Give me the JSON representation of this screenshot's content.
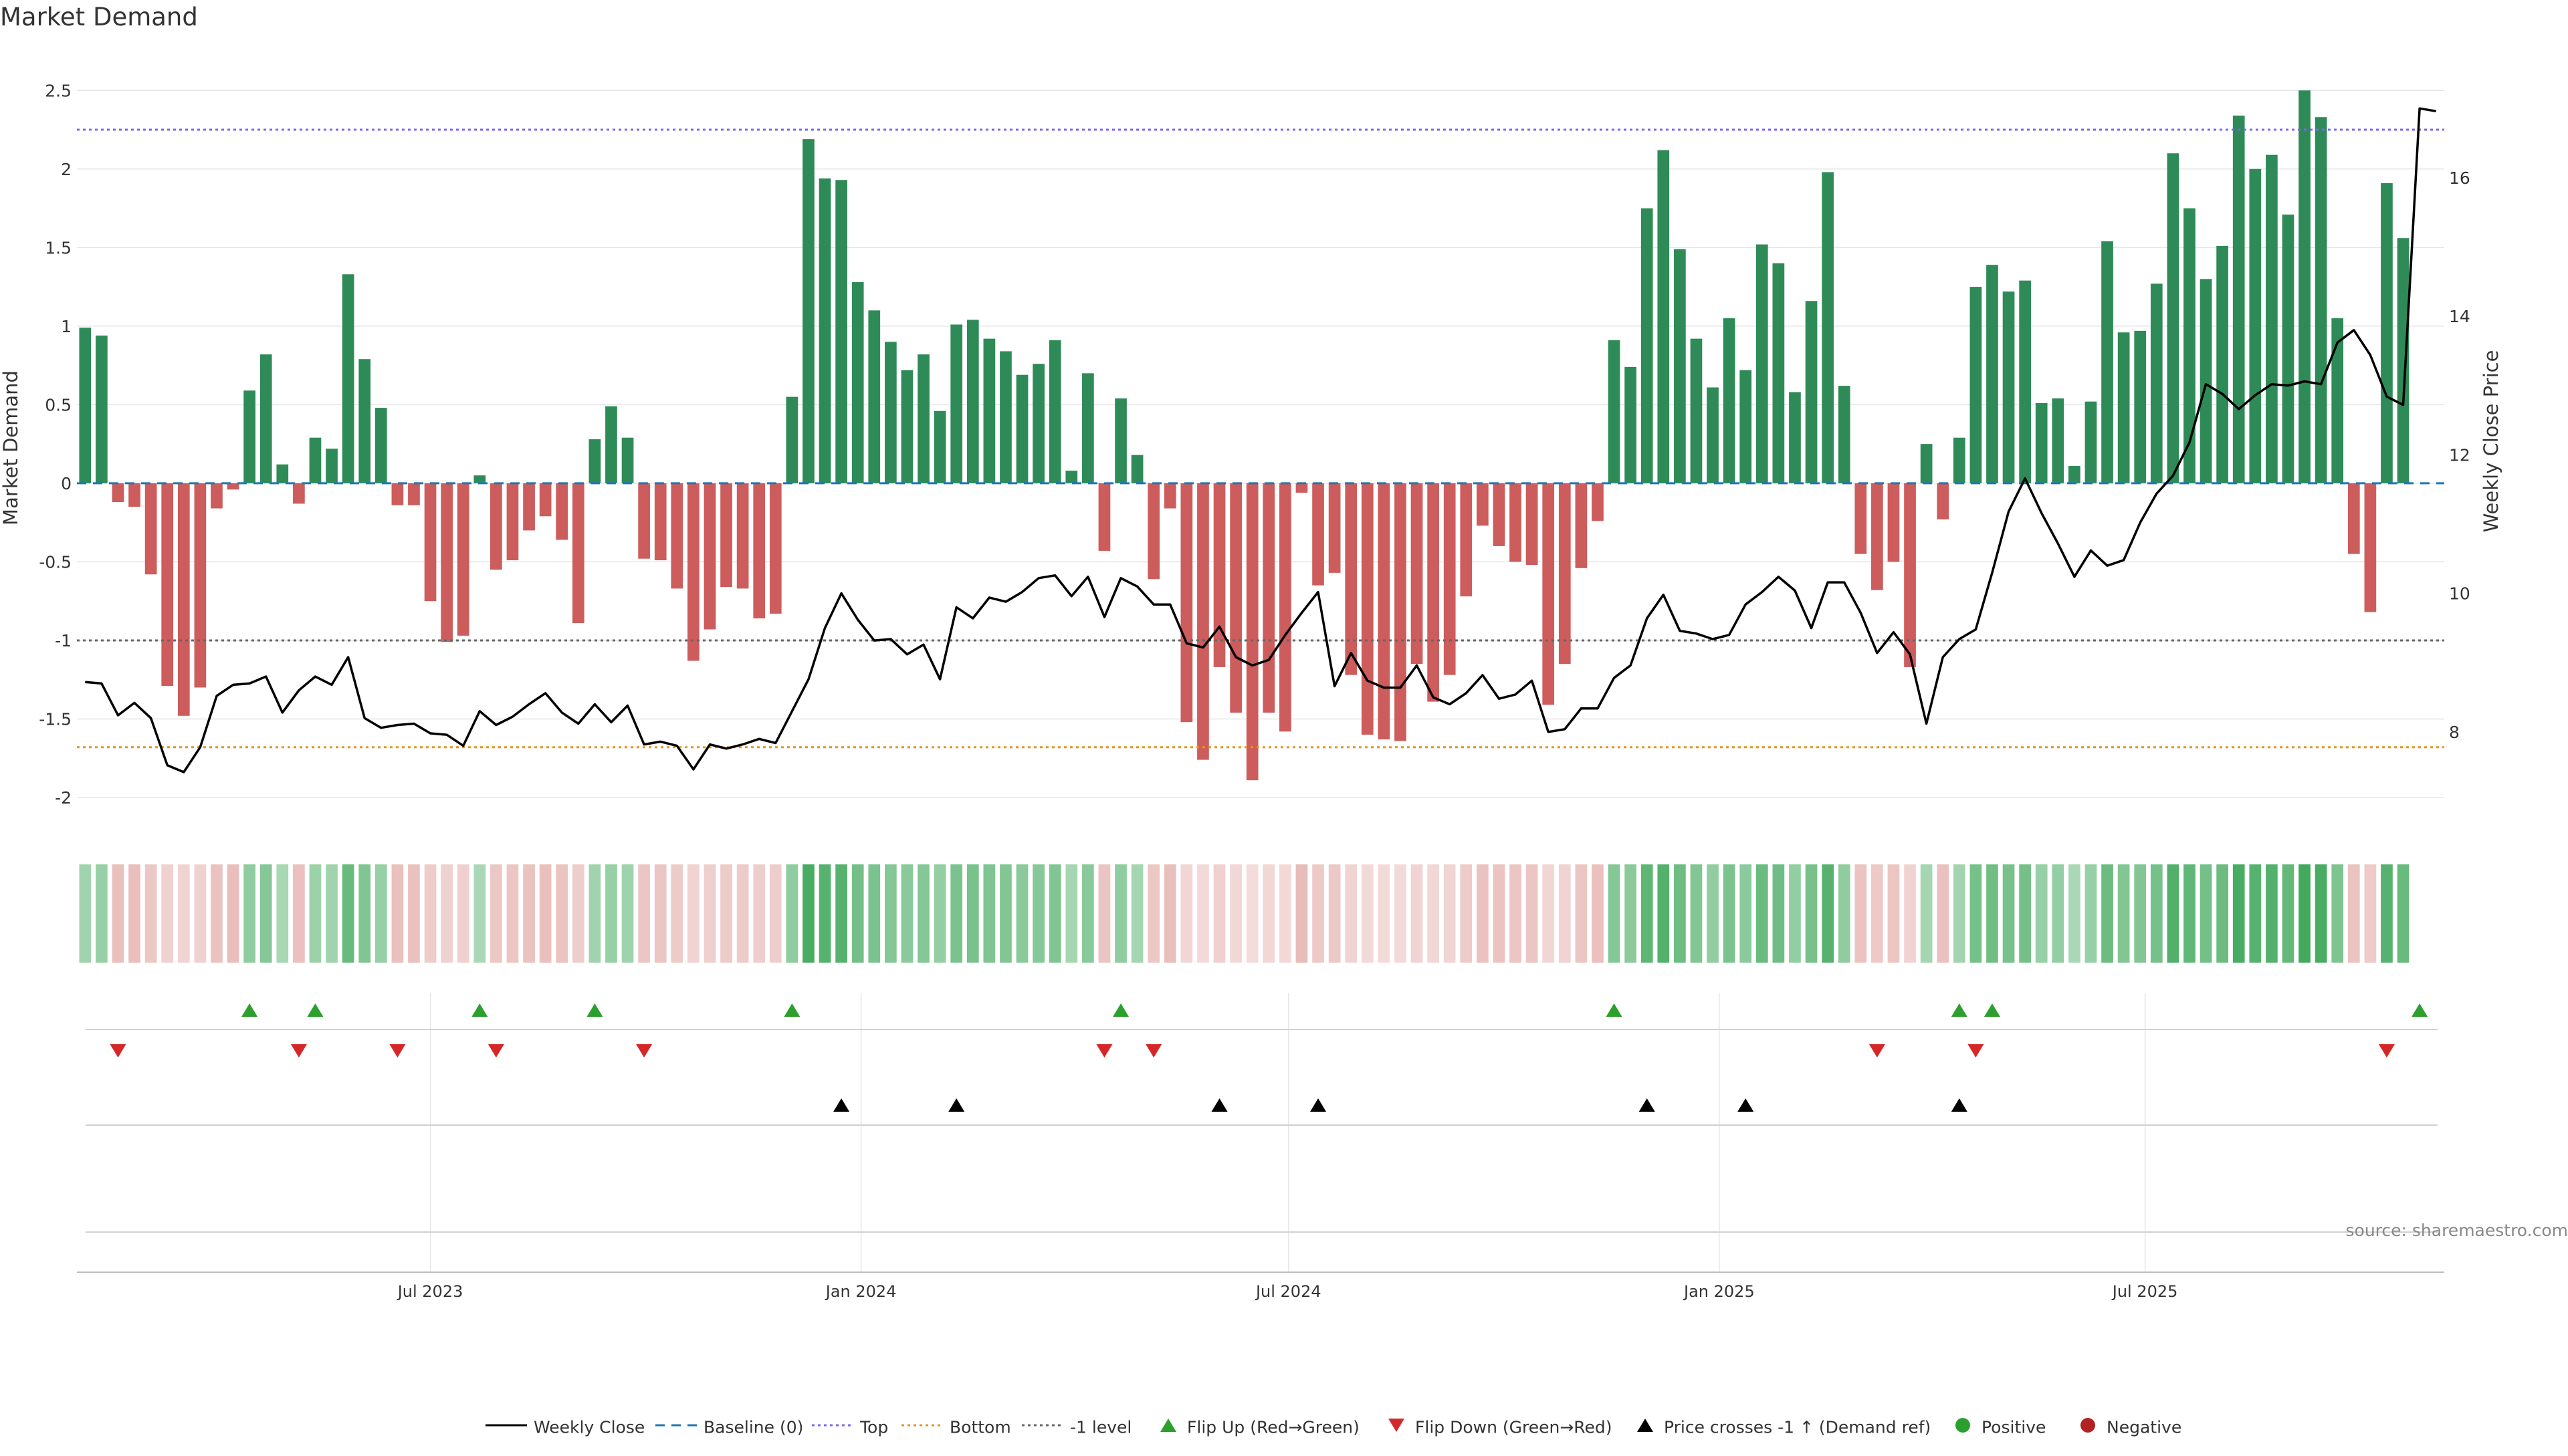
{
  "title": "Market Demand",
  "source_label": "source: sharemaestro.com",
  "colors": {
    "pos": "#2e8b57",
    "neg": "#cd5c5c",
    "price": "#000000",
    "baseline": "#1f77b4",
    "top": "#7b68ee",
    "bottom": "#e69522",
    "minus1": "#666666",
    "flip_up": "#2ca02c",
    "flip_down": "#d62728",
    "cross": "#000000",
    "positive": "#2ca02c",
    "negative": "#b22222",
    "grid": "#e6e6e6"
  },
  "chart_data": {
    "type": "bar",
    "title": "Market Demand",
    "ylabel": "Market Demand",
    "y2label": "Weekly Close Price",
    "ylim": [
      -2.2,
      2.65
    ],
    "y_ticks": [
      2.5,
      2,
      1.5,
      1,
      0.5,
      0,
      -0.5,
      -1,
      -1.5,
      -2
    ],
    "y2lim": [
      6.6,
      17.6
    ],
    "y2_ticks": [
      8,
      10,
      12,
      14,
      16
    ],
    "x_ticks": [
      {
        "label": "Jul 2023",
        "week": 21.5
      },
      {
        "label": "Jan 2024",
        "week": 47.7
      },
      {
        "label": "Jul 2024",
        "week": 73.7
      },
      {
        "label": "Jan 2025",
        "week": 99.9
      },
      {
        "label": "Jul 2025",
        "week": 125.8
      }
    ],
    "weeks": 144,
    "levels": {
      "top": 2.25,
      "bottom": -1.68,
      "minus1": -1.0,
      "baseline": 0
    },
    "demand": [
      0.99,
      0.94,
      -0.12,
      -0.15,
      -0.58,
      -1.29,
      -1.48,
      -1.3,
      -0.16,
      -0.04,
      0.59,
      0.82,
      0.12,
      -0.13,
      0.29,
      0.22,
      1.33,
      0.79,
      0.48,
      -0.14,
      -0.14,
      -0.75,
      -1.01,
      -0.97,
      0.05,
      -0.55,
      -0.49,
      -0.3,
      -0.21,
      -0.36,
      -0.89,
      0.28,
      0.49,
      0.29,
      -0.48,
      -0.49,
      -0.67,
      -1.13,
      -0.93,
      -0.66,
      -0.67,
      -0.86,
      -0.83,
      0.55,
      2.19,
      1.94,
      1.93,
      1.28,
      1.1,
      0.9,
      0.72,
      0.82,
      0.46,
      1.01,
      1.04,
      0.92,
      0.84,
      0.69,
      0.76,
      0.91,
      0.08,
      0.7,
      -0.43,
      0.54,
      0.18,
      -0.61,
      -0.16,
      -1.52,
      -1.76,
      -1.17,
      -1.46,
      -1.89,
      -1.46,
      -1.58,
      -0.06,
      -0.65,
      -0.57,
      -1.22,
      -1.6,
      -1.63,
      -1.64,
      -1.15,
      -1.39,
      -1.22,
      -0.72,
      -0.27,
      -0.4,
      -0.5,
      -0.52,
      -1.41,
      -1.15,
      -0.54,
      -0.24,
      0.91,
      0.74,
      1.75,
      2.12,
      1.49,
      0.92,
      0.61,
      1.05,
      0.72,
      1.52,
      1.4,
      0.58,
      1.16,
      1.98,
      0.62,
      -0.45,
      -0.68,
      -0.5,
      -1.17,
      0.25,
      -0.23,
      0.29,
      1.25,
      1.39,
      1.22,
      1.29,
      0.51,
      0.54,
      0.11,
      0.52,
      1.54,
      0.96,
      0.97,
      1.27,
      2.1,
      1.75,
      1.3,
      1.51,
      2.34,
      2.0,
      2.09,
      1.71,
      2.5,
      2.33,
      1.05,
      -0.45,
      -0.82,
      1.91,
      1.56
    ],
    "price": [
      8.72,
      8.7,
      8.24,
      8.42,
      8.2,
      7.52,
      7.42,
      7.78,
      8.52,
      8.68,
      8.7,
      8.8,
      8.28,
      8.6,
      8.8,
      8.68,
      9.08,
      8.2,
      8.06,
      8.1,
      8.12,
      7.98,
      7.96,
      7.8,
      8.3,
      8.1,
      8.22,
      8.4,
      8.56,
      8.28,
      8.12,
      8.4,
      8.14,
      8.38,
      7.82,
      7.86,
      7.8,
      7.46,
      7.82,
      7.76,
      7.82,
      7.9,
      7.84,
      8.3,
      8.76,
      9.5,
      10.0,
      9.62,
      9.32,
      9.34,
      9.12,
      9.26,
      8.76,
      9.8,
      9.64,
      9.94,
      9.88,
      10.02,
      10.22,
      10.26,
      9.96,
      10.24,
      9.66,
      10.22,
      10.1,
      9.84,
      9.84,
      9.28,
      9.22,
      9.52,
      9.08,
      8.96,
      9.04,
      9.4,
      9.72,
      10.02,
      8.66,
      9.14,
      8.74,
      8.64,
      8.64,
      8.96,
      8.5,
      8.4,
      8.56,
      8.82,
      8.48,
      8.54,
      8.74,
      8.0,
      8.04,
      8.34,
      8.34,
      8.78,
      8.96,
      9.64,
      9.98,
      9.46,
      9.42,
      9.34,
      9.4,
      9.84,
      10.02,
      10.24,
      10.04,
      9.5,
      10.16,
      10.16,
      9.72,
      9.14,
      9.44,
      9.12,
      8.12,
      9.08,
      9.34,
      9.48,
      10.3,
      11.18,
      11.66,
      11.16,
      10.72,
      10.24,
      10.62,
      10.4,
      10.48,
      11.02,
      11.44,
      11.7,
      12.18,
      13.02,
      12.88,
      12.66,
      12.86,
      13.02,
      13.0,
      13.06,
      13.02,
      13.62,
      13.8,
      13.44,
      12.84,
      12.72,
      17.0,
      16.96
    ],
    "heat": [
      0.72,
      0.81,
      0.55,
      0.58,
      0.46,
      0.34,
      0.3,
      0.34,
      0.53,
      0.58,
      0.9,
      1.0,
      0.65,
      0.54,
      0.76,
      0.72,
      1.3,
      1.04,
      0.82,
      0.54,
      0.54,
      0.4,
      0.34,
      0.35,
      0.62,
      0.46,
      0.48,
      0.53,
      0.55,
      0.51,
      0.38,
      0.72,
      0.81,
      0.73,
      0.47,
      0.47,
      0.42,
      0.31,
      0.36,
      0.42,
      0.42,
      0.37,
      0.38,
      0.9,
      1.6,
      1.47,
      1.47,
      1.17,
      1.1,
      1.0,
      0.95,
      1.0,
      0.85,
      1.1,
      1.12,
      1.06,
      1.02,
      0.95,
      0.98,
      1.05,
      0.68,
      0.96,
      0.49,
      0.9,
      0.68,
      0.46,
      0.56,
      0.27,
      0.22,
      0.33,
      0.26,
      0.2,
      0.26,
      0.24,
      0.6,
      0.43,
      0.45,
      0.3,
      0.23,
      0.23,
      0.23,
      0.31,
      0.26,
      0.29,
      0.41,
      0.53,
      0.5,
      0.47,
      0.47,
      0.27,
      0.31,
      0.47,
      0.54,
      1.0,
      0.93,
      1.39,
      1.5,
      1.24,
      1.02,
      0.88,
      1.1,
      0.94,
      1.28,
      1.22,
      0.86,
      1.13,
      1.47,
      0.89,
      0.5,
      0.43,
      0.48,
      0.32,
      0.68,
      0.54,
      0.7,
      1.15,
      1.2,
      1.13,
      1.16,
      0.82,
      0.84,
      0.62,
      0.82,
      1.25,
      1.02,
      1.02,
      1.15,
      1.52,
      1.36,
      1.16,
      1.25,
      1.61,
      1.47,
      1.5,
      1.34,
      1.68,
      1.6,
      1.08,
      0.5,
      0.42,
      1.46,
      1.3
    ],
    "flip_up": [
      10,
      14,
      24,
      31,
      43,
      63,
      93,
      114,
      116,
      142
    ],
    "flip_down": [
      2,
      13,
      19,
      25,
      34,
      62,
      65,
      109,
      115,
      140
    ],
    "price_cross_up": [
      46,
      53,
      69,
      75,
      95,
      101,
      114
    ]
  },
  "legend": [
    {
      "key": "weekly_close",
      "label": "Weekly Close"
    },
    {
      "key": "baseline",
      "label": "Baseline (0)"
    },
    {
      "key": "top",
      "label": "Top"
    },
    {
      "key": "bottom",
      "label": "Bottom"
    },
    {
      "key": "minus1",
      "label": "-1 level"
    },
    {
      "key": "flip_up",
      "label": "Flip Up (Red→Green)"
    },
    {
      "key": "flip_down",
      "label": "Flip Down (Green→Red)"
    },
    {
      "key": "cross",
      "label": "Price crosses -1 ↑ (Demand ref)"
    },
    {
      "key": "positive",
      "label": "Positive"
    },
    {
      "key": "negative",
      "label": "Negative"
    }
  ]
}
